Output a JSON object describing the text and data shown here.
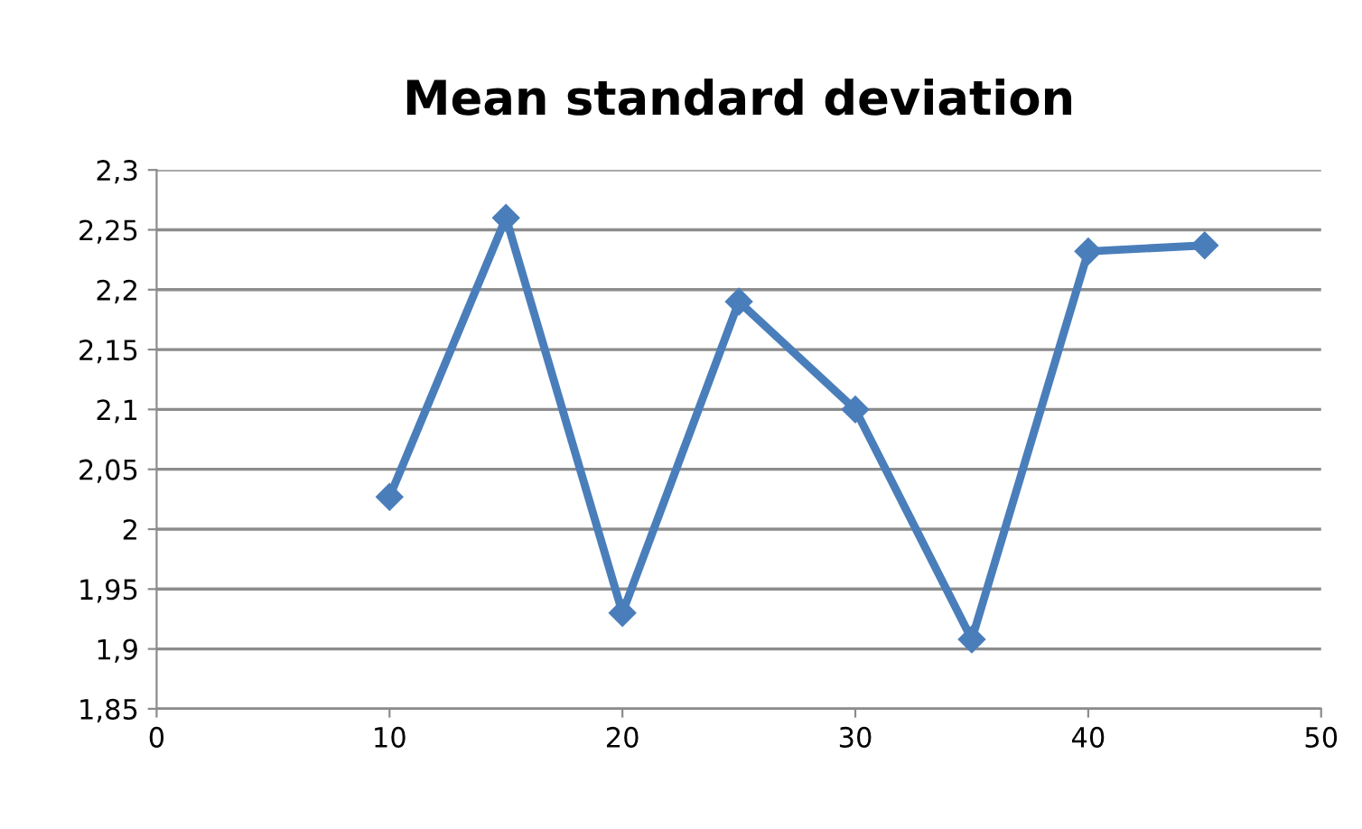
{
  "chart_data": {
    "type": "line",
    "title": "Mean standard deviation",
    "x": [
      10,
      15,
      20,
      25,
      30,
      35,
      40,
      45
    ],
    "series": [
      {
        "color": "#4a7ebb",
        "values": [
          2.027,
          2.26,
          1.93,
          2.19,
          2.1,
          1.908,
          2.232,
          2.237
        ]
      }
    ],
    "xlim": [
      0,
      50
    ],
    "xticks": [
      0,
      10,
      20,
      30,
      40,
      50
    ],
    "ylim": [
      1.85,
      2.3
    ],
    "yticks": [
      {
        "value": 1.85,
        "label": "1,85"
      },
      {
        "value": 1.9,
        "label": "1,9"
      },
      {
        "value": 1.95,
        "label": "1,95"
      },
      {
        "value": 2,
        "label": "2"
      },
      {
        "value": 2.05,
        "label": "2,05"
      },
      {
        "value": 2.1,
        "label": "2,1"
      },
      {
        "value": 2.15,
        "label": "2,15"
      },
      {
        "value": 2.2,
        "label": "2,2"
      },
      {
        "value": 2.25,
        "label": "2,25"
      },
      {
        "value": 2.3,
        "label": "2,3"
      }
    ],
    "grid": "y",
    "marker": "diamond",
    "line_style": "solid"
  }
}
